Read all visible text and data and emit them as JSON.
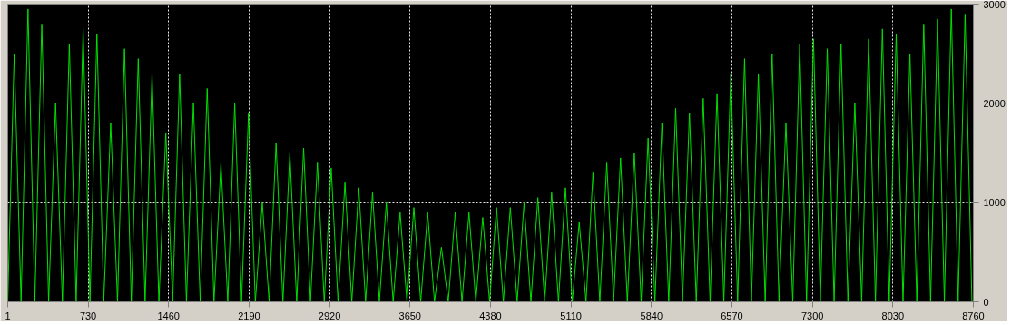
{
  "chart_data": {
    "type": "line",
    "x": [
      1,
      60,
      122,
      185,
      247,
      310,
      372,
      435,
      497,
      560,
      622,
      685,
      747,
      810,
      872,
      935,
      997,
      1060,
      1122,
      1185,
      1247,
      1310,
      1372,
      1435,
      1497,
      1560,
      1622,
      1685,
      1747,
      1810,
      1872,
      1935,
      1997,
      2060,
      2122,
      2185,
      2247,
      2310,
      2372,
      2435,
      2497,
      2560,
      2622,
      2685,
      2747,
      2810,
      2872,
      2935,
      2997,
      3060,
      3122,
      3185,
      3247,
      3310,
      3372,
      3435,
      3497,
      3560,
      3622,
      3685,
      3747,
      3810,
      3872,
      3935,
      3997,
      4060,
      4122,
      4185,
      4247,
      4310,
      4372,
      4435,
      4497,
      4560,
      4622,
      4685,
      4747,
      4810,
      4872,
      4935,
      4997,
      5060,
      5122,
      5185,
      5247,
      5310,
      5372,
      5435,
      5497,
      5560,
      5622,
      5685,
      5747,
      5810,
      5872,
      5935,
      5997,
      6060,
      6122,
      6185,
      6247,
      6310,
      6372,
      6435,
      6497,
      6560,
      6622,
      6685,
      6747,
      6810,
      6872,
      6935,
      6997,
      7060,
      7122,
      7185,
      7247,
      7310,
      7372,
      7435,
      7497,
      7560,
      7622,
      7685,
      7747,
      7810,
      7872,
      7935,
      7997,
      8060,
      8122,
      8185,
      8247,
      8310,
      8372,
      8435,
      8497,
      8560,
      8622,
      8685,
      8747
    ],
    "series": [
      {
        "color": "#00e000",
        "values": [
          0,
          2500,
          0,
          2950,
          0,
          2800,
          0,
          2000,
          0,
          2600,
          0,
          2750,
          0,
          2700,
          0,
          1800,
          0,
          2550,
          0,
          2450,
          0,
          2300,
          0,
          1700,
          0,
          2300,
          0,
          2000,
          0,
          2150,
          0,
          1400,
          0,
          2000,
          0,
          1900,
          0,
          1000,
          0,
          1600,
          0,
          1500,
          0,
          1550,
          0,
          1400,
          0,
          1350,
          0,
          1200,
          0,
          1150,
          0,
          1100,
          0,
          1000,
          0,
          900,
          0,
          950,
          0,
          900,
          0,
          550,
          0,
          900,
          0,
          900,
          0,
          850,
          0,
          950,
          0,
          950,
          0,
          1000,
          0,
          1050,
          0,
          1100,
          0,
          1150,
          0,
          800,
          0,
          1300,
          0,
          1400,
          0,
          1450,
          0,
          1500,
          0,
          1650,
          0,
          1800,
          0,
          1950,
          0,
          1900,
          0,
          2050,
          0,
          2100,
          0,
          2300,
          0,
          2450,
          0,
          2300,
          0,
          2500,
          0,
          1800,
          0,
          2600,
          0,
          2650,
          0,
          2550,
          0,
          2600,
          0,
          2000,
          0,
          2650,
          0,
          2750,
          0,
          2700,
          0,
          2500,
          0,
          2800,
          0,
          2850,
          0,
          2950,
          0,
          2900,
          0
        ]
      }
    ],
    "xlim": [
      1,
      8760
    ],
    "ylim": [
      0,
      3000
    ],
    "xticks": [
      1,
      730,
      1460,
      2190,
      2920,
      3650,
      4380,
      5110,
      5840,
      6570,
      7300,
      8030,
      8760
    ],
    "yticks": [
      0,
      1000,
      2000,
      3000
    ],
    "grid": true,
    "line_style": "solid",
    "marker": "none"
  }
}
